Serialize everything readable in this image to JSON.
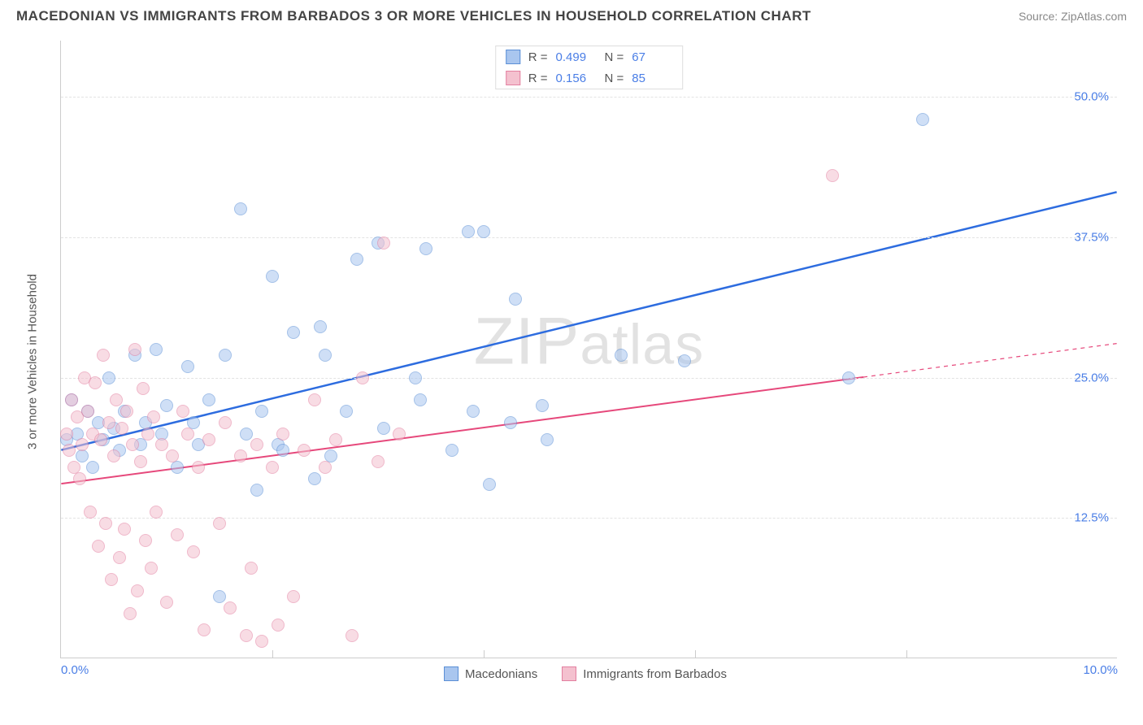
{
  "title": "MACEDONIAN VS IMMIGRANTS FROM BARBADOS 3 OR MORE VEHICLES IN HOUSEHOLD CORRELATION CHART",
  "source": "Source: ZipAtlas.com",
  "y_axis_label": "3 or more Vehicles in Household",
  "watermark": "ZIPatlas",
  "chart": {
    "type": "scatter",
    "background_color": "#ffffff",
    "grid_color": "#e3e3e3",
    "axis_color": "#cccccc",
    "tick_label_color": "#4a7ee6",
    "tick_fontsize": 15,
    "title_fontsize": 17,
    "xlim": [
      0,
      10
    ],
    "ylim": [
      0,
      55
    ],
    "x_ticks": [
      0,
      2,
      4,
      6,
      8,
      10
    ],
    "x_tick_labels": [
      "0.0%",
      "",
      "",
      "",
      "",
      "10.0%"
    ],
    "y_ticks": [
      12.5,
      25.0,
      37.5,
      50.0
    ],
    "y_tick_labels": [
      "12.5%",
      "25.0%",
      "37.5%",
      "50.0%"
    ],
    "marker_radius": 8,
    "marker_opacity": 0.55,
    "series": [
      {
        "name": "Macedonians",
        "color_fill": "#a9c6ef",
        "color_stroke": "#5b8fd6",
        "line_color": "#2d6cdf",
        "line_width": 2.5,
        "r_value": "0.499",
        "n_value": "67",
        "trend": {
          "x1": 0,
          "y1": 18.5,
          "x2": 10,
          "y2": 41.5
        },
        "trend_dashed_from_x": null,
        "points": [
          [
            0.05,
            19.5
          ],
          [
            0.1,
            23
          ],
          [
            0.15,
            20
          ],
          [
            0.2,
            18
          ],
          [
            0.25,
            22
          ],
          [
            0.3,
            17
          ],
          [
            0.35,
            21
          ],
          [
            0.4,
            19.5
          ],
          [
            0.45,
            25
          ],
          [
            0.5,
            20.5
          ],
          [
            0.55,
            18.5
          ],
          [
            0.6,
            22
          ],
          [
            0.7,
            27
          ],
          [
            0.75,
            19
          ],
          [
            0.8,
            21
          ],
          [
            0.9,
            27.5
          ],
          [
            0.95,
            20
          ],
          [
            1.0,
            22.5
          ],
          [
            1.1,
            17
          ],
          [
            1.2,
            26
          ],
          [
            1.25,
            21
          ],
          [
            1.3,
            19
          ],
          [
            1.4,
            23
          ],
          [
            1.5,
            5.5
          ],
          [
            1.55,
            27
          ],
          [
            1.7,
            40
          ],
          [
            1.75,
            20
          ],
          [
            1.85,
            15
          ],
          [
            1.9,
            22
          ],
          [
            2.0,
            34
          ],
          [
            2.05,
            19
          ],
          [
            2.1,
            18.5
          ],
          [
            2.2,
            29
          ],
          [
            2.4,
            16
          ],
          [
            2.45,
            29.5
          ],
          [
            2.5,
            27
          ],
          [
            2.55,
            18
          ],
          [
            2.7,
            22
          ],
          [
            2.8,
            35.5
          ],
          [
            3.0,
            37
          ],
          [
            3.05,
            20.5
          ],
          [
            3.35,
            25
          ],
          [
            3.4,
            23
          ],
          [
            3.45,
            36.5
          ],
          [
            3.7,
            18.5
          ],
          [
            3.85,
            38
          ],
          [
            3.9,
            22
          ],
          [
            4.0,
            38
          ],
          [
            4.05,
            15.5
          ],
          [
            4.25,
            21
          ],
          [
            4.3,
            32
          ],
          [
            4.55,
            22.5
          ],
          [
            4.6,
            19.5
          ],
          [
            5.3,
            27
          ],
          [
            5.9,
            26.5
          ],
          [
            7.45,
            25
          ],
          [
            8.15,
            48
          ]
        ]
      },
      {
        "name": "Immigrants from Barbados",
        "color_fill": "#f4c1cf",
        "color_stroke": "#e37fa0",
        "line_color": "#e6487b",
        "line_width": 2,
        "r_value": "0.156",
        "n_value": "85",
        "trend": {
          "x1": 0,
          "y1": 15.5,
          "x2": 10,
          "y2": 28
        },
        "trend_dashed_from_x": 7.6,
        "points": [
          [
            0.05,
            20
          ],
          [
            0.08,
            18.5
          ],
          [
            0.1,
            23
          ],
          [
            0.12,
            17
          ],
          [
            0.15,
            21.5
          ],
          [
            0.18,
            16
          ],
          [
            0.2,
            19
          ],
          [
            0.22,
            25
          ],
          [
            0.25,
            22
          ],
          [
            0.28,
            13
          ],
          [
            0.3,
            20
          ],
          [
            0.32,
            24.5
          ],
          [
            0.35,
            10
          ],
          [
            0.38,
            19.5
          ],
          [
            0.4,
            27
          ],
          [
            0.42,
            12
          ],
          [
            0.45,
            21
          ],
          [
            0.48,
            7
          ],
          [
            0.5,
            18
          ],
          [
            0.52,
            23
          ],
          [
            0.55,
            9
          ],
          [
            0.58,
            20.5
          ],
          [
            0.6,
            11.5
          ],
          [
            0.62,
            22
          ],
          [
            0.65,
            4
          ],
          [
            0.68,
            19
          ],
          [
            0.7,
            27.5
          ],
          [
            0.72,
            6
          ],
          [
            0.75,
            17.5
          ],
          [
            0.78,
            24
          ],
          [
            0.8,
            10.5
          ],
          [
            0.82,
            20
          ],
          [
            0.85,
            8
          ],
          [
            0.88,
            21.5
          ],
          [
            0.9,
            13
          ],
          [
            0.95,
            19
          ],
          [
            1.0,
            5
          ],
          [
            1.05,
            18
          ],
          [
            1.1,
            11
          ],
          [
            1.15,
            22
          ],
          [
            1.2,
            20
          ],
          [
            1.25,
            9.5
          ],
          [
            1.3,
            17
          ],
          [
            1.35,
            2.5
          ],
          [
            1.4,
            19.5
          ],
          [
            1.5,
            12
          ],
          [
            1.55,
            21
          ],
          [
            1.6,
            4.5
          ],
          [
            1.7,
            18
          ],
          [
            1.75,
            2
          ],
          [
            1.8,
            8
          ],
          [
            1.85,
            19
          ],
          [
            1.9,
            1.5
          ],
          [
            2.0,
            17
          ],
          [
            2.05,
            3
          ],
          [
            2.1,
            20
          ],
          [
            2.2,
            5.5
          ],
          [
            2.3,
            18.5
          ],
          [
            2.4,
            23
          ],
          [
            2.5,
            17
          ],
          [
            2.6,
            19.5
          ],
          [
            2.75,
            2
          ],
          [
            2.85,
            25
          ],
          [
            3.0,
            17.5
          ],
          [
            3.05,
            37
          ],
          [
            3.2,
            20
          ],
          [
            7.3,
            43
          ]
        ]
      }
    ]
  },
  "legend_bottom": [
    {
      "swatch_fill": "#a9c6ef",
      "swatch_stroke": "#5b8fd6",
      "label": "Macedonians"
    },
    {
      "swatch_fill": "#f4c1cf",
      "swatch_stroke": "#e37fa0",
      "label": "Immigrants from Barbados"
    }
  ]
}
